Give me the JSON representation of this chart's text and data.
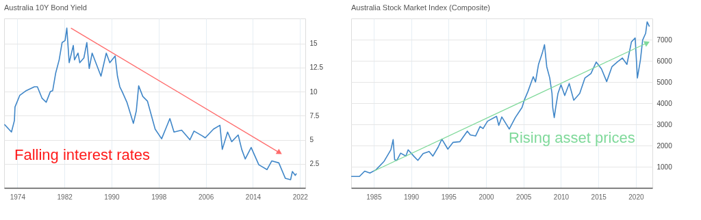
{
  "chart_data": [
    {
      "type": "line",
      "title": "Australia 10Y Bond Yield",
      "xlim": [
        1971.75,
        2022.9
      ],
      "xticks": [
        1974,
        1982,
        1990,
        1998,
        2006,
        2014,
        2022
      ],
      "ylim": [
        0,
        17.6
      ],
      "yticks": [
        2.5,
        5,
        7.5,
        10,
        12.5,
        15
      ],
      "grid": true,
      "annotations": [
        "Falling interest rates"
      ],
      "series": [
        {
          "color": "#3f86c8",
          "x": [
            1971.8,
            1973.0,
            1973.5,
            1973.6,
            1974.4,
            1975.5,
            1976.9,
            1977.4,
            1978.2,
            1978.9,
            1979.6,
            1980.0,
            1980.5,
            1981.1,
            1981.6,
            1982.1,
            1982.4,
            1982.8,
            1983.5,
            1983.7,
            1984.3,
            1984.6,
            1985.3,
            1985.8,
            1986.2,
            1986.7,
            1988.2,
            1989.1,
            1989.7,
            1990.6,
            1991.0,
            1991.4,
            1991.8,
            1992.6,
            1993.7,
            1994.2,
            1994.6,
            1995.3,
            1996.1,
            1997.4,
            1998.5,
            1999.3,
            1999.9,
            2000.6,
            2001.9,
            2003.3,
            2004.0,
            2005.4,
            2005.9,
            2007.3,
            2008.4,
            2008.8,
            2009.7,
            2010.4,
            2011.5,
            2012.1,
            2012.7,
            2013.7,
            2015.0,
            2016.4,
            2017.2,
            2018.4,
            2019.5,
            2020.4,
            2020.7,
            2021.2,
            2021.4
          ],
          "values": [
            6.6,
            5.8,
            7.0,
            8.4,
            9.6,
            10.1,
            10.5,
            10.5,
            9.3,
            8.9,
            10.0,
            10.1,
            11.9,
            13.3,
            15.1,
            15.3,
            16.6,
            13.0,
            14.8,
            13.3,
            14.0,
            13.0,
            13.5,
            15.1,
            12.4,
            14.0,
            11.6,
            14.0,
            13.0,
            13.7,
            11.6,
            10.5,
            10.0,
            8.9,
            6.7,
            8.0,
            10.6,
            9.5,
            9.0,
            6.1,
            5.1,
            6.3,
            7.2,
            5.8,
            6.0,
            5.0,
            5.9,
            5.4,
            5.2,
            6.1,
            6.5,
            4.0,
            5.8,
            4.8,
            5.5,
            4.0,
            3.0,
            4.2,
            2.4,
            1.9,
            2.8,
            2.6,
            1.0,
            0.85,
            1.7,
            1.3,
            1.5
          ]
        },
        {
          "type": "line",
          "color": "#ff6b6b",
          "x": [
            1983.1,
            2018.4
          ],
          "values": [
            16.6,
            3.7
          ]
        }
      ]
    },
    {
      "type": "line",
      "title": "Australia Stock Market Index (Composite)",
      "xlim": [
        1982.0,
        2022.2
      ],
      "xticks": [
        1985,
        1990,
        1995,
        2000,
        2005,
        2010,
        2015,
        2020
      ],
      "ylim": [
        0,
        8000
      ],
      "yticks": [
        1000,
        2000,
        3000,
        4000,
        5000,
        6000,
        7000
      ],
      "grid": true,
      "annotations": [
        "Rising asset prices"
      ],
      "series": [
        {
          "color": "#3f86c8",
          "x": [
            1982.0,
            1983.1,
            1983.8,
            1984.5,
            1985.3,
            1986.4,
            1987.3,
            1987.6,
            1987.8,
            1988.1,
            1988.6,
            1989.3,
            1989.6,
            1990.4,
            1990.9,
            1991.6,
            1992.4,
            1992.9,
            1993.6,
            1994.1,
            1994.9,
            1995.6,
            1996.5,
            1997.5,
            1997.9,
            1998.6,
            1999.2,
            1999.6,
            2000.2,
            2001.4,
            2001.7,
            2002.1,
            2003.1,
            2003.9,
            2004.8,
            2005.1,
            2005.6,
            2006.3,
            2006.6,
            2007.0,
            2007.5,
            2007.8,
            2008.1,
            2008.5,
            2008.8,
            2008.9,
            2009.1,
            2009.3,
            2009.6,
            2010.0,
            2010.5,
            2011.1,
            2011.7,
            2012.5,
            2013.2,
            2014.0,
            2014.7,
            2015.4,
            2016.1,
            2016.8,
            2017.5,
            2018.2,
            2018.8,
            2019.4,
            2019.9,
            2020.2,
            2020.6,
            2020.9,
            2021.3,
            2021.5,
            2021.8
          ],
          "values": [
            540,
            540,
            790,
            700,
            850,
            1260,
            1800,
            2280,
            1330,
            1300,
            1640,
            1500,
            1800,
            1480,
            1300,
            1620,
            1720,
            1500,
            1920,
            2300,
            1830,
            2150,
            2180,
            2680,
            2500,
            2450,
            2900,
            2800,
            3150,
            3380,
            2950,
            3350,
            2780,
            3320,
            3800,
            4140,
            4560,
            5250,
            5000,
            5830,
            6360,
            6760,
            5720,
            5190,
            4460,
            3790,
            3320,
            3800,
            4460,
            4870,
            4360,
            4930,
            4140,
            4460,
            5190,
            5400,
            5940,
            5620,
            5020,
            5720,
            5940,
            6130,
            5830,
            6890,
            7080,
            5190,
            6040,
            6980,
            7300,
            7840,
            7620
          ]
        },
        {
          "type": "line",
          "color": "#7fd99a",
          "x": [
            1985.0,
            2021.4
          ],
          "values": [
            790,
            6830
          ]
        }
      ]
    }
  ]
}
